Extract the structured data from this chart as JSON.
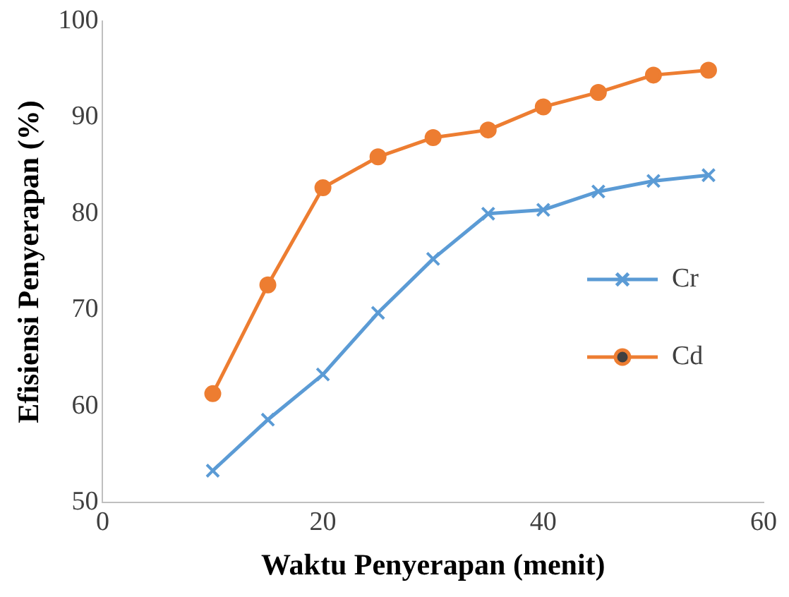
{
  "chart_data": {
    "type": "line",
    "xlabel": "Waktu Penyerapan (menit)",
    "ylabel": "Efisiensi Penyerapan (%)",
    "x": [
      10,
      15,
      20,
      25,
      30,
      35,
      40,
      45,
      50,
      55
    ],
    "series": [
      {
        "name": "Cr",
        "color": "#5b9bd5",
        "marker": "cross",
        "values": [
          53.3,
          58.6,
          63.3,
          69.7,
          75.3,
          80.0,
          80.4,
          82.3,
          83.4,
          84.0
        ]
      },
      {
        "name": "Cd",
        "color": "#ed7d31",
        "marker": "circle",
        "values": [
          61.3,
          72.6,
          82.7,
          85.9,
          87.9,
          88.7,
          91.1,
          92.6,
          94.4,
          94.9
        ]
      }
    ],
    "xlim": [
      0,
      60
    ],
    "xticks": [
      0,
      20,
      40,
      60
    ],
    "ylim": [
      50,
      100
    ],
    "yticks": [
      50,
      60,
      70,
      80,
      90,
      100
    ],
    "grid": false,
    "legend": "right"
  }
}
